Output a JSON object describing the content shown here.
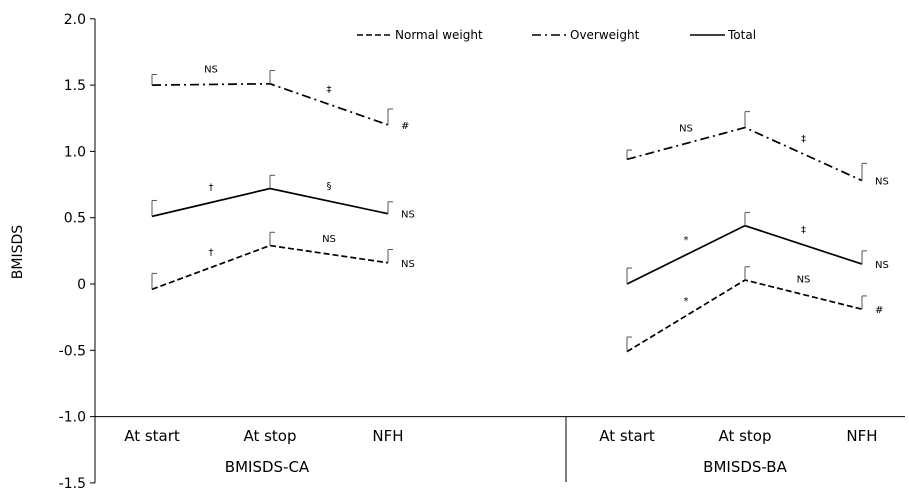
{
  "chart_data": {
    "type": "line",
    "ylabel": "BMISDS",
    "ylim": [
      -1.5,
      2.0
    ],
    "y_ticks": [
      "2.0",
      "1.5",
      "1.0",
      "0.5",
      "0",
      "-0.5",
      "-1.0",
      "-1.5"
    ],
    "legend": {
      "placement": "top",
      "entries": [
        {
          "label": "Normal weight",
          "style": "dashed"
        },
        {
          "label": "Overweight",
          "style": "dash-dot"
        },
        {
          "label": "Total",
          "style": "solid"
        }
      ]
    },
    "panels": [
      {
        "group_label": "BMISDS-CA",
        "categories": [
          "At start",
          "At stop",
          "NFH"
        ],
        "series": [
          {
            "name": "Overweight",
            "values": [
              1.5,
              1.51,
              1.2
            ],
            "errors": [
              0.08,
              0.1,
              0.12
            ]
          },
          {
            "name": "Total",
            "values": [
              0.51,
              0.72,
              0.53
            ],
            "errors": [
              0.12,
              0.1,
              0.09
            ]
          },
          {
            "name": "Normal weight",
            "values": [
              -0.04,
              0.29,
              0.16
            ],
            "errors": [
              0.12,
              0.1,
              0.1
            ]
          }
        ],
        "annotations": [
          {
            "series": "Overweight",
            "segment": 1,
            "text": "NS"
          },
          {
            "series": "Overweight",
            "segment": 2,
            "text": "‡"
          },
          {
            "series": "Overweight",
            "end": true,
            "text": "#"
          },
          {
            "series": "Total",
            "segment": 1,
            "text": "†"
          },
          {
            "series": "Total",
            "segment": 2,
            "text": "§"
          },
          {
            "series": "Total",
            "end": true,
            "text": "NS"
          },
          {
            "series": "Normal weight",
            "segment": 1,
            "text": "†"
          },
          {
            "series": "Normal weight",
            "segment": 2,
            "text": "NS"
          },
          {
            "series": "Normal weight",
            "end": true,
            "text": "NS"
          }
        ]
      },
      {
        "group_label": "BMISDS-BA",
        "categories": [
          "At start",
          "At stop",
          "NFH"
        ],
        "series": [
          {
            "name": "Overweight",
            "values": [
              0.94,
              1.18,
              0.78
            ],
            "errors": [
              0.07,
              0.12,
              0.13
            ]
          },
          {
            "name": "Total",
            "values": [
              0.0,
              0.44,
              0.15
            ],
            "errors": [
              0.12,
              0.1,
              0.1
            ]
          },
          {
            "name": "Normal weight",
            "values": [
              -0.51,
              0.03,
              -0.19
            ],
            "errors": [
              0.11,
              0.1,
              0.1
            ]
          }
        ],
        "annotations": [
          {
            "series": "Overweight",
            "segment": 1,
            "text": "NS"
          },
          {
            "series": "Overweight",
            "segment": 2,
            "text": "‡"
          },
          {
            "series": "Overweight",
            "end": true,
            "text": "NS"
          },
          {
            "series": "Total",
            "segment": 1,
            "text": "*"
          },
          {
            "series": "Total",
            "segment": 2,
            "text": "‡"
          },
          {
            "series": "Total",
            "end": true,
            "text": "NS"
          },
          {
            "series": "Normal weight",
            "segment": 1,
            "text": "*"
          },
          {
            "series": "Normal weight",
            "segment": 2,
            "text": "NS"
          },
          {
            "series": "Normal weight",
            "end": true,
            "text": "#"
          }
        ]
      }
    ]
  }
}
